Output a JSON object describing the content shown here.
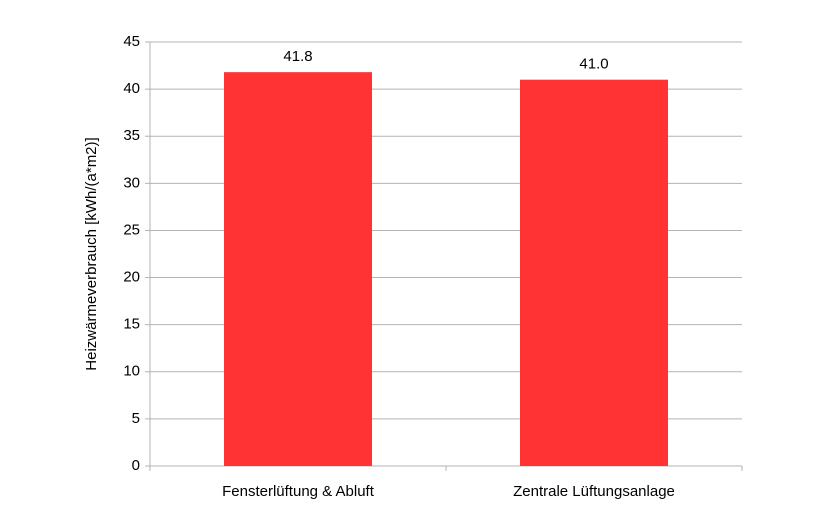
{
  "chart_data": {
    "type": "bar",
    "y_label": "Heizwärmeverbrauch [kWh/(a*m2)]",
    "categories": [
      "Fensterlüftung & Abluft",
      "Zentrale Lüftungsanlage"
    ],
    "values": [
      41.8,
      41.0
    ],
    "value_labels": [
      "41.8",
      "41.0"
    ],
    "color": "#ff3333",
    "ylim": [
      0,
      45
    ],
    "yticks": [
      0,
      5,
      10,
      15,
      20,
      25,
      30,
      35,
      40,
      45
    ],
    "grid": true
  }
}
